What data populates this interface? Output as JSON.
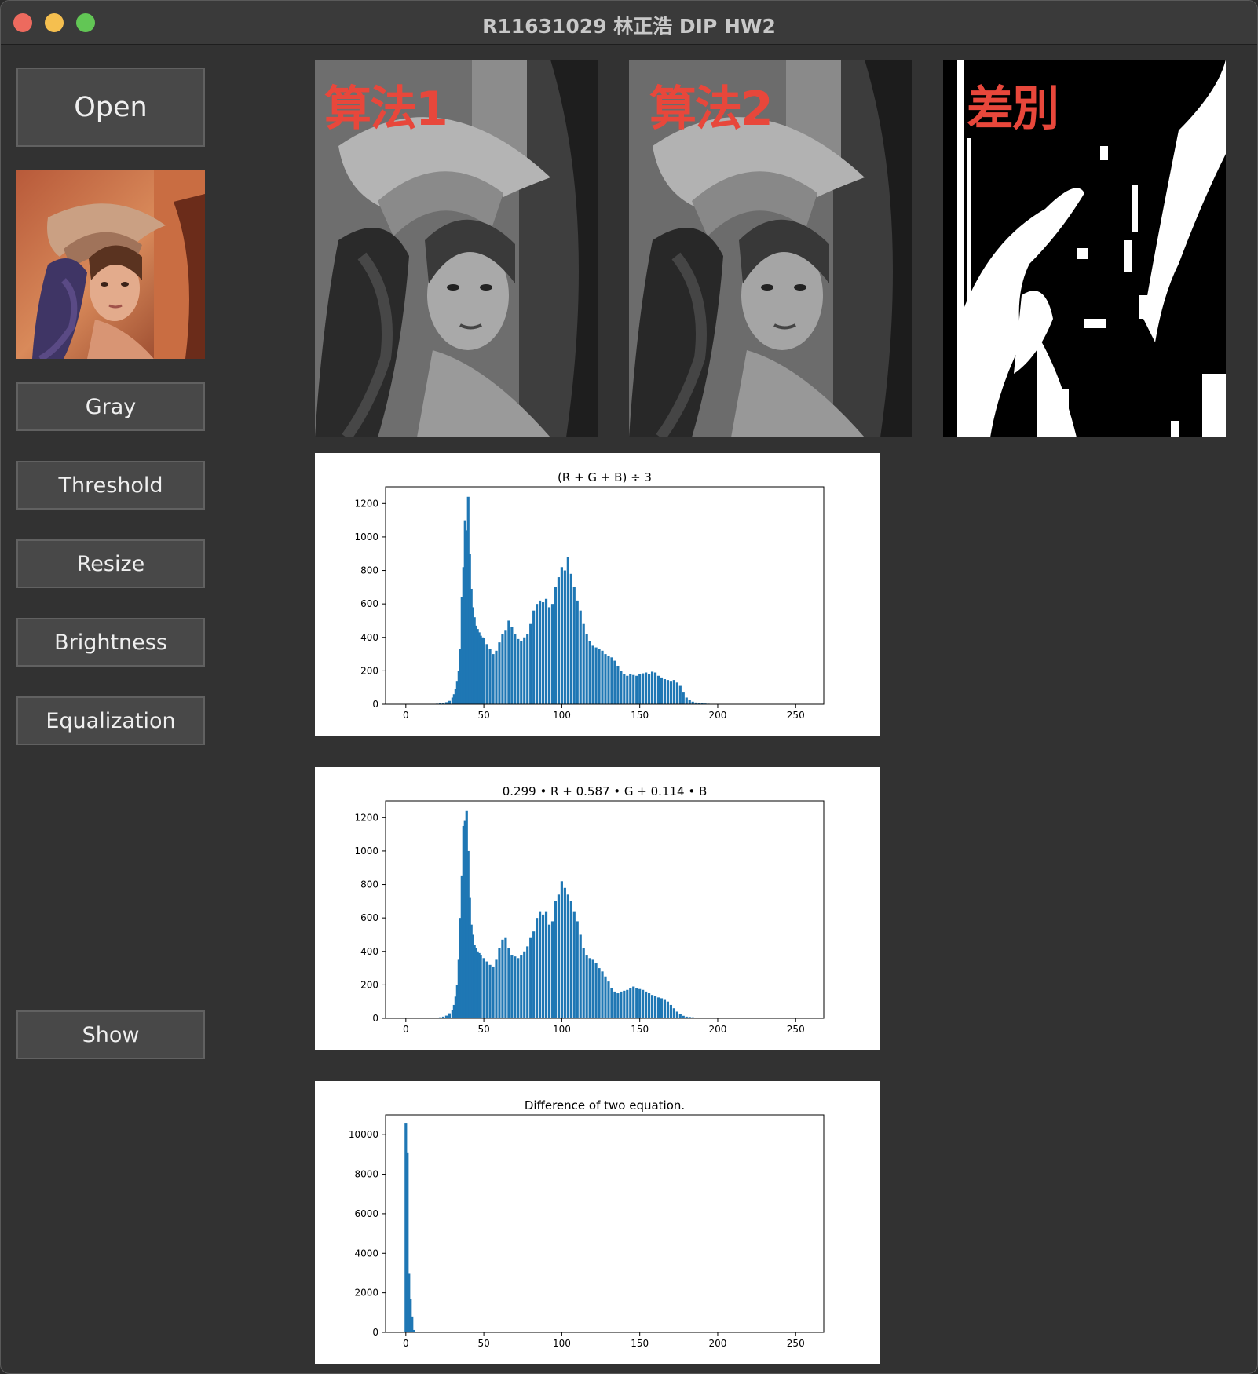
{
  "window": {
    "title": "R11631029 林正浩 DIP HW2"
  },
  "sidebar": {
    "open_label": "Open",
    "buttons": [
      "Gray",
      "Threshold",
      "Resize",
      "Brightness",
      "Equalization"
    ],
    "show_label": "Show"
  },
  "panels": [
    {
      "label": "算法1"
    },
    {
      "label": "算法2"
    },
    {
      "label": "差別"
    }
  ],
  "colors": {
    "bar": "#1f77b4",
    "overlay_text": "#e8473b"
  },
  "chart_data": [
    {
      "type": "bar",
      "title": "(R + G + B) ÷ 3",
      "xlim": [
        -13,
        268
      ],
      "ylim": [
        0,
        1300
      ],
      "xticks": [
        0,
        50,
        100,
        150,
        200,
        250
      ],
      "yticks": [
        0,
        200,
        400,
        600,
        800,
        1000,
        1200
      ],
      "x": [
        20,
        22,
        24,
        26,
        28,
        30,
        31,
        32,
        33,
        34,
        35,
        36,
        37,
        38,
        39,
        40,
        41,
        42,
        43,
        44,
        45,
        46,
        47,
        48,
        49,
        50,
        52,
        54,
        56,
        58,
        60,
        62,
        64,
        66,
        68,
        70,
        72,
        74,
        76,
        78,
        80,
        82,
        84,
        86,
        88,
        90,
        92,
        94,
        96,
        98,
        100,
        102,
        104,
        106,
        108,
        110,
        112,
        114,
        116,
        118,
        120,
        122,
        124,
        126,
        128,
        130,
        132,
        134,
        136,
        138,
        140,
        142,
        144,
        146,
        148,
        150,
        152,
        154,
        156,
        158,
        160,
        162,
        164,
        166,
        168,
        170,
        172,
        174,
        176,
        178,
        180,
        182,
        184,
        186,
        188,
        190,
        192,
        194,
        196,
        198,
        200,
        204,
        208,
        212,
        216
      ],
      "values": [
        3,
        5,
        8,
        12,
        20,
        40,
        60,
        90,
        140,
        200,
        330,
        640,
        820,
        1100,
        1040,
        1240,
        900,
        690,
        580,
        520,
        470,
        450,
        430,
        410,
        400,
        395,
        360,
        330,
        300,
        320,
        370,
        420,
        440,
        500,
        460,
        420,
        390,
        380,
        400,
        420,
        480,
        560,
        600,
        620,
        610,
        630,
        580,
        600,
        700,
        760,
        820,
        800,
        880,
        780,
        700,
        620,
        560,
        480,
        420,
        380,
        350,
        340,
        330,
        320,
        300,
        290,
        280,
        260,
        230,
        200,
        180,
        170,
        180,
        175,
        170,
        180,
        185,
        190,
        180,
        195,
        190,
        170,
        160,
        150,
        145,
        140,
        145,
        130,
        110,
        70,
        40,
        25,
        15,
        10,
        8,
        6,
        4,
        3,
        2,
        1,
        1,
        1,
        0,
        0,
        0
      ]
    },
    {
      "type": "bar",
      "title": "0.299 • R + 0.587 • G + 0.114 • B",
      "xlim": [
        -13,
        268
      ],
      "ylim": [
        0,
        1300
      ],
      "xticks": [
        0,
        50,
        100,
        150,
        200,
        250
      ],
      "yticks": [
        0,
        200,
        400,
        600,
        800,
        1000,
        1200
      ],
      "x": [
        18,
        20,
        22,
        24,
        26,
        28,
        30,
        31,
        32,
        33,
        34,
        35,
        36,
        37,
        38,
        39,
        40,
        41,
        42,
        43,
        44,
        45,
        46,
        47,
        48,
        50,
        52,
        54,
        56,
        58,
        60,
        62,
        64,
        66,
        68,
        70,
        72,
        74,
        76,
        78,
        80,
        82,
        84,
        86,
        88,
        90,
        92,
        94,
        96,
        98,
        100,
        102,
        104,
        106,
        108,
        110,
        112,
        114,
        116,
        118,
        120,
        122,
        124,
        126,
        128,
        130,
        132,
        134,
        136,
        138,
        140,
        142,
        144,
        146,
        148,
        150,
        152,
        154,
        156,
        158,
        160,
        162,
        164,
        166,
        168,
        170,
        172,
        174,
        176,
        178,
        180,
        182,
        184,
        186,
        188,
        190,
        192,
        194,
        196,
        198,
        200,
        204,
        208,
        212,
        216
      ],
      "values": [
        2,
        4,
        6,
        10,
        16,
        30,
        50,
        80,
        130,
        200,
        350,
        600,
        850,
        1150,
        1180,
        1240,
        1000,
        720,
        560,
        500,
        440,
        420,
        400,
        390,
        380,
        360,
        340,
        320,
        310,
        350,
        420,
        470,
        480,
        420,
        380,
        370,
        360,
        380,
        400,
        430,
        480,
        520,
        600,
        640,
        620,
        640,
        560,
        580,
        700,
        740,
        820,
        780,
        740,
        700,
        640,
        580,
        500,
        420,
        380,
        360,
        350,
        330,
        300,
        280,
        250,
        220,
        180,
        160,
        150,
        160,
        165,
        170,
        180,
        190,
        180,
        175,
        170,
        160,
        150,
        140,
        135,
        125,
        120,
        110,
        100,
        80,
        60,
        40,
        25,
        15,
        10,
        8,
        6,
        4,
        3,
        2,
        2,
        1,
        1,
        1,
        1,
        0,
        0,
        0,
        0
      ]
    },
    {
      "type": "bar",
      "title": "Difference of two equation.",
      "xlim": [
        -13,
        268
      ],
      "ylim": [
        0,
        11000
      ],
      "xticks": [
        0,
        50,
        100,
        150,
        200,
        250
      ],
      "yticks": [
        0,
        2000,
        4000,
        6000,
        8000,
        10000
      ],
      "x": [
        0,
        1,
        2,
        3,
        4,
        5
      ],
      "values": [
        10600,
        9100,
        3000,
        1700,
        800,
        120
      ]
    }
  ]
}
